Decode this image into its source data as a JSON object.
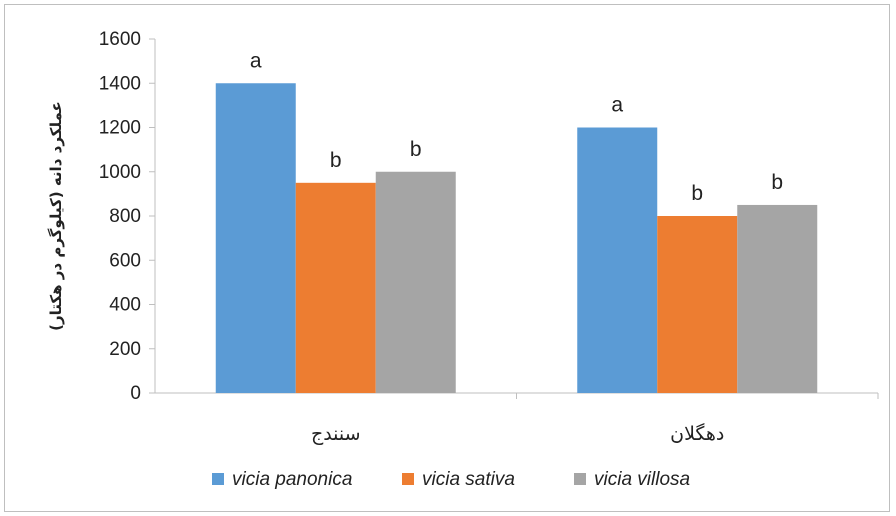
{
  "chart_data": {
    "type": "bar",
    "title": "",
    "xlabel": "",
    "ylabel": "عملکرد دانه (کیلوگرم در هکتار)",
    "ylim": [
      0,
      1600
    ],
    "yticks": [
      0,
      200,
      400,
      600,
      800,
      1000,
      1200,
      1400,
      1600
    ],
    "grid": false,
    "legend_position": "bottom",
    "categories": [
      "سنندج",
      "دهگلان"
    ],
    "series": [
      {
        "name": "vicia panonica",
        "color": "#5b9bd5",
        "values": [
          1400,
          1200
        ],
        "labels": [
          "a",
          "a"
        ]
      },
      {
        "name": "vicia sativa",
        "color": "#ed7d31",
        "values": [
          950,
          800
        ],
        "labels": [
          "b",
          "b"
        ]
      },
      {
        "name": "vicia villosa",
        "color": "#a5a5a5",
        "values": [
          1000,
          850
        ],
        "labels": [
          "b",
          "b"
        ]
      }
    ]
  }
}
